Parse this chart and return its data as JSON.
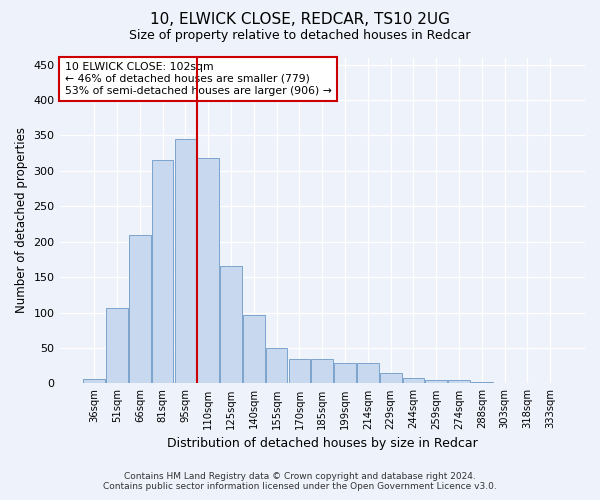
{
  "title1": "10, ELWICK CLOSE, REDCAR, TS10 2UG",
  "title2": "Size of property relative to detached houses in Redcar",
  "xlabel": "Distribution of detached houses by size in Redcar",
  "ylabel": "Number of detached properties",
  "categories": [
    "36sqm",
    "51sqm",
    "66sqm",
    "81sqm",
    "95sqm",
    "110sqm",
    "125sqm",
    "140sqm",
    "155sqm",
    "170sqm",
    "185sqm",
    "199sqm",
    "214sqm",
    "229sqm",
    "244sqm",
    "259sqm",
    "274sqm",
    "288sqm",
    "303sqm",
    "318sqm",
    "333sqm"
  ],
  "values": [
    6,
    106,
    210,
    315,
    345,
    318,
    166,
    97,
    50,
    35,
    35,
    29,
    29,
    15,
    8,
    5,
    5,
    2,
    1,
    1,
    1
  ],
  "bar_color": "#c8d9ef",
  "bar_edge_color": "#7ba3cc",
  "vline_color": "#cc0000",
  "annotation_text": "10 ELWICK CLOSE: 102sqm\n← 46% of detached houses are smaller (779)\n53% of semi-detached houses are larger (906) →",
  "annotation_box_color": "#ffffff",
  "annotation_box_edge_color": "#cc0000",
  "ylim": [
    0,
    460
  ],
  "yticks": [
    0,
    50,
    100,
    150,
    200,
    250,
    300,
    350,
    400,
    450
  ],
  "footer1": "Contains HM Land Registry data © Crown copyright and database right 2024.",
  "footer2": "Contains public sector information licensed under the Open Government Licence v3.0.",
  "bg_color": "#eef2fa",
  "plot_bg_color": "#eef2fa",
  "title_fontsize": 11,
  "subtitle_fontsize": 9
}
